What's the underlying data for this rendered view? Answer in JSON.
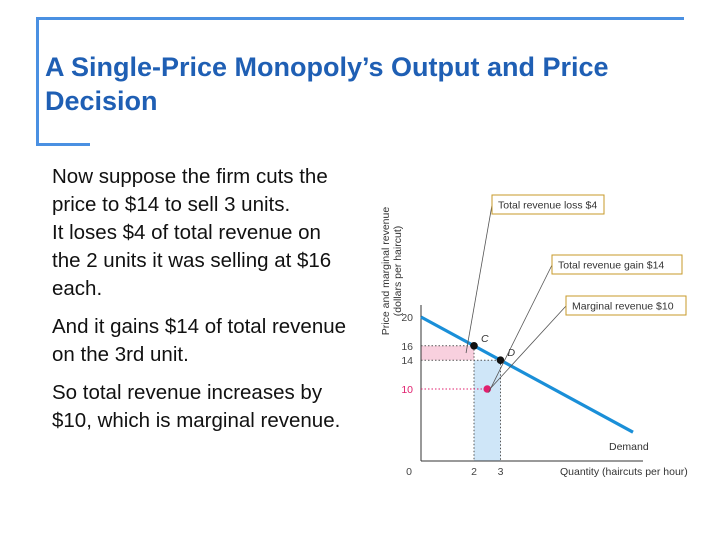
{
  "title": "A Single-Price Monopoly’s Output and Price Decision",
  "paragraphs": [
    "Now suppose the firm cuts the price to $14 to sell 3 units.",
    "It loses $4 of total revenue on the 2 units it was selling at $16 each.",
    "And it gains $14 of total revenue on the 3rd unit.",
    "So total revenue increases by $10, which is marginal revenue."
  ],
  "colors": {
    "title": "#1f5fb4",
    "frame": "#4a90e2",
    "demand_line": "#1a8fd8",
    "loss_fill": "#f8d0de",
    "gain_fill": "#cfe6f8",
    "marginal_dot": "#e0206e",
    "label_border": "#c79a2a"
  },
  "chart_data": {
    "type": "line",
    "ylabel": "Price and marginal revenue",
    "ylabel_units": "(dollars per haircut)",
    "xlabel": "Quantity (haircuts per hour)",
    "xlim": [
      0,
      8
    ],
    "ylim": [
      0,
      20
    ],
    "y_ticks": [
      20,
      16,
      14,
      10
    ],
    "y_tick_colors": [
      "#444444",
      "#444444",
      "#444444",
      "#e0206e"
    ],
    "x_ticks": [
      0,
      2,
      3
    ],
    "series": [
      {
        "name": "Demand",
        "x": [
          0,
          8
        ],
        "y": [
          20,
          4
        ]
      }
    ],
    "points": [
      {
        "label": "C",
        "x": 2,
        "y": 16
      },
      {
        "label": "D",
        "x": 3,
        "y": 14
      }
    ],
    "marginal_revenue_point": {
      "x": 2.5,
      "y": 10
    },
    "shaded_regions": [
      {
        "name": "Total revenue loss $4",
        "x": [
          0,
          2
        ],
        "y": [
          14,
          16
        ]
      },
      {
        "name": "Total revenue gain $14",
        "x": [
          2,
          3
        ],
        "y": [
          0,
          14
        ]
      }
    ],
    "annotations": [
      "Total revenue loss $4",
      "Total revenue gain $14",
      "Marginal revenue $10"
    ]
  }
}
